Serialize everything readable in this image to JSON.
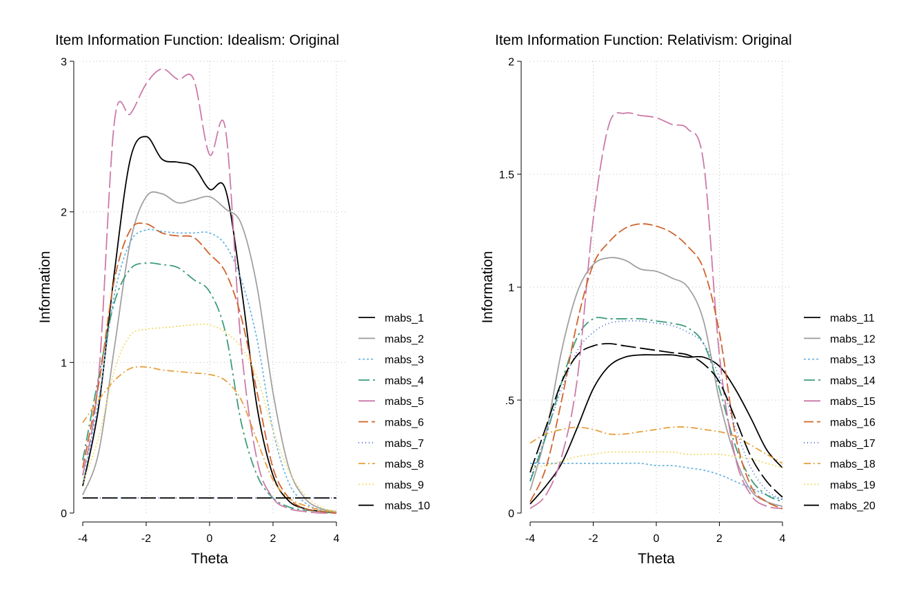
{
  "chart_data": [
    {
      "type": "line",
      "title": "Item Information Function: Idealism: Original",
      "xlabel": "Theta",
      "ylabel": "Information",
      "xlim": [
        -4,
        4
      ],
      "ylim": [
        0,
        3
      ],
      "xticks": [
        -4,
        -2,
        0,
        2,
        4
      ],
      "xtick_labels": [
        "-4",
        "-2",
        "0",
        "2",
        "4"
      ],
      "yticks": [
        0,
        1,
        2,
        3
      ],
      "ytick_labels": [
        "0",
        "1",
        "2",
        "3"
      ],
      "grid": true,
      "legend_position": "right",
      "x": [
        -4,
        -3.5,
        -3,
        -2.5,
        -2,
        -1.5,
        -1,
        -0.5,
        0,
        0.5,
        1,
        1.5,
        2,
        2.5,
        3,
        3.5,
        4
      ],
      "series": [
        {
          "name": "mabs_1",
          "color": "#000000",
          "dash": "solid",
          "values": [
            0.18,
            0.7,
            1.6,
            2.35,
            2.5,
            2.35,
            2.33,
            2.3,
            2.15,
            2.15,
            1.5,
            0.7,
            0.25,
            0.08,
            0.03,
            0.01,
            0.0
          ]
        },
        {
          "name": "mabs_2",
          "color": "#a0a0a0",
          "dash": "solid",
          "values": [
            0.12,
            0.4,
            1.1,
            1.8,
            2.1,
            2.12,
            2.06,
            2.08,
            2.1,
            2.02,
            1.92,
            1.5,
            0.8,
            0.3,
            0.1,
            0.03,
            0.01
          ]
        },
        {
          "name": "mabs_3",
          "color": "#6eb6e3",
          "dash": "3 3",
          "values": [
            0.2,
            0.75,
            1.45,
            1.8,
            1.88,
            1.87,
            1.86,
            1.86,
            1.86,
            1.78,
            1.55,
            1.15,
            0.55,
            0.2,
            0.07,
            0.02,
            0.01
          ]
        },
        {
          "name": "mabs_4",
          "color": "#3b9c78",
          "dash": "16 5 3 5",
          "values": [
            0.35,
            0.9,
            1.4,
            1.62,
            1.66,
            1.65,
            1.63,
            1.55,
            1.47,
            1.2,
            0.6,
            0.25,
            0.1,
            0.04,
            0.02,
            0.01,
            0.0
          ]
        },
        {
          "name": "mabs_5",
          "color": "#cc79a7",
          "dash": "24 6",
          "values": [
            0.25,
            0.9,
            2.6,
            2.65,
            2.85,
            2.95,
            2.88,
            2.88,
            2.38,
            2.55,
            1.1,
            0.35,
            0.1,
            0.03,
            0.01,
            0.0,
            0.0
          ]
        },
        {
          "name": "mabs_6",
          "color": "#d0622a",
          "dash": "14 5",
          "values": [
            0.3,
            0.85,
            1.55,
            1.88,
            1.92,
            1.86,
            1.84,
            1.83,
            1.72,
            1.6,
            1.3,
            0.8,
            0.3,
            0.1,
            0.03,
            0.01,
            0.0
          ]
        },
        {
          "name": "mabs_7",
          "color": "#3a5fcd",
          "dash": "1 4",
          "values": [
            0.1,
            0.1,
            0.1,
            0.1,
            0.1,
            0.1,
            0.1,
            0.1,
            0.1,
            0.1,
            0.1,
            0.1,
            0.1,
            0.1,
            0.1,
            0.1,
            0.1
          ]
        },
        {
          "name": "mabs_8",
          "color": "#e69f3a",
          "dash": "10 4 2 4",
          "values": [
            0.6,
            0.75,
            0.88,
            0.96,
            0.97,
            0.95,
            0.94,
            0.93,
            0.92,
            0.88,
            0.75,
            0.48,
            0.22,
            0.1,
            0.05,
            0.02,
            0.01
          ]
        },
        {
          "name": "mabs_9",
          "color": "#f1dc6a",
          "dash": "2 3",
          "values": [
            0.2,
            0.5,
            0.95,
            1.18,
            1.22,
            1.23,
            1.24,
            1.25,
            1.25,
            1.2,
            1.1,
            0.9,
            0.55,
            0.28,
            0.12,
            0.04,
            0.01
          ]
        },
        {
          "name": "mabs_10",
          "color": "#000000",
          "dash": "22 6",
          "values": [
            0.1,
            0.1,
            0.1,
            0.1,
            0.1,
            0.1,
            0.1,
            0.1,
            0.1,
            0.1,
            0.1,
            0.1,
            0.1,
            0.1,
            0.1,
            0.1,
            0.1
          ]
        }
      ]
    },
    {
      "type": "line",
      "title": "Item Information Function: Relativism: Original",
      "xlabel": "Theta",
      "ylabel": "Information",
      "xlim": [
        -4,
        4
      ],
      "ylim": [
        0,
        2
      ],
      "xticks": [
        -4,
        -2,
        0,
        2,
        4
      ],
      "xtick_labels": [
        "-4",
        "-2",
        "0",
        "2",
        "4"
      ],
      "yticks": [
        0,
        0.5,
        1,
        1.5,
        2
      ],
      "ytick_labels": [
        "0",
        ".5",
        "1",
        "1.5",
        "2"
      ],
      "grid": true,
      "legend_position": "right",
      "x": [
        -4,
        -3.5,
        -3,
        -2.5,
        -2,
        -1.5,
        -1,
        -0.5,
        0,
        0.5,
        1,
        1.5,
        2,
        2.5,
        3,
        3.5,
        4
      ],
      "series": [
        {
          "name": "mabs_11",
          "color": "#000000",
          "dash": "solid",
          "values": [
            0.04,
            0.12,
            0.22,
            0.38,
            0.55,
            0.65,
            0.69,
            0.7,
            0.7,
            0.7,
            0.69,
            0.69,
            0.65,
            0.55,
            0.42,
            0.28,
            0.2
          ]
        },
        {
          "name": "mabs_12",
          "color": "#a0a0a0",
          "dash": "solid",
          "values": [
            0.1,
            0.35,
            0.72,
            0.98,
            1.1,
            1.13,
            1.12,
            1.08,
            1.07,
            1.04,
            1.0,
            0.85,
            0.5,
            0.25,
            0.1,
            0.05,
            0.03
          ]
        },
        {
          "name": "mabs_13",
          "color": "#6eb6e3",
          "dash": "3 3",
          "values": [
            0.22,
            0.22,
            0.22,
            0.22,
            0.22,
            0.22,
            0.22,
            0.22,
            0.21,
            0.21,
            0.2,
            0.19,
            0.17,
            0.14,
            0.11,
            0.08,
            0.06
          ]
        },
        {
          "name": "mabs_14",
          "color": "#3b9c78",
          "dash": "16 5 3 5",
          "values": [
            0.14,
            0.34,
            0.58,
            0.78,
            0.86,
            0.86,
            0.86,
            0.86,
            0.85,
            0.84,
            0.82,
            0.75,
            0.55,
            0.3,
            0.15,
            0.08,
            0.05
          ]
        },
        {
          "name": "mabs_15",
          "color": "#cc79a7",
          "dash": "24 6",
          "values": [
            0.02,
            0.08,
            0.25,
            0.6,
            1.3,
            1.72,
            1.77,
            1.76,
            1.75,
            1.72,
            1.7,
            1.55,
            0.7,
            0.25,
            0.08,
            0.03,
            0.02
          ]
        },
        {
          "name": "mabs_16",
          "color": "#d0622a",
          "dash": "14 5",
          "values": [
            0.05,
            0.2,
            0.5,
            0.85,
            1.1,
            1.2,
            1.26,
            1.28,
            1.27,
            1.24,
            1.18,
            1.08,
            0.8,
            0.35,
            0.12,
            0.05,
            0.02
          ]
        },
        {
          "name": "mabs_17",
          "color": "#3a5fcd",
          "dash": "1 4",
          "values": [
            0.15,
            0.35,
            0.55,
            0.72,
            0.8,
            0.84,
            0.85,
            0.85,
            0.84,
            0.83,
            0.8,
            0.75,
            0.6,
            0.38,
            0.2,
            0.1,
            0.06
          ]
        },
        {
          "name": "mabs_18",
          "color": "#e69f3a",
          "dash": "10 4 2 4",
          "values": [
            0.31,
            0.35,
            0.37,
            0.38,
            0.37,
            0.35,
            0.35,
            0.36,
            0.37,
            0.38,
            0.38,
            0.37,
            0.36,
            0.34,
            0.3,
            0.26,
            0.22
          ]
        },
        {
          "name": "mabs_19",
          "color": "#f1dc6a",
          "dash": "2 3",
          "values": [
            0.2,
            0.21,
            0.23,
            0.25,
            0.26,
            0.27,
            0.27,
            0.27,
            0.27,
            0.27,
            0.26,
            0.26,
            0.26,
            0.25,
            0.24,
            0.22,
            0.2
          ]
        },
        {
          "name": "mabs_20",
          "color": "#000000",
          "dash": "22 6",
          "values": [
            0.18,
            0.38,
            0.58,
            0.7,
            0.74,
            0.75,
            0.74,
            0.73,
            0.72,
            0.71,
            0.7,
            0.66,
            0.58,
            0.42,
            0.25,
            0.14,
            0.07
          ]
        }
      ]
    }
  ]
}
